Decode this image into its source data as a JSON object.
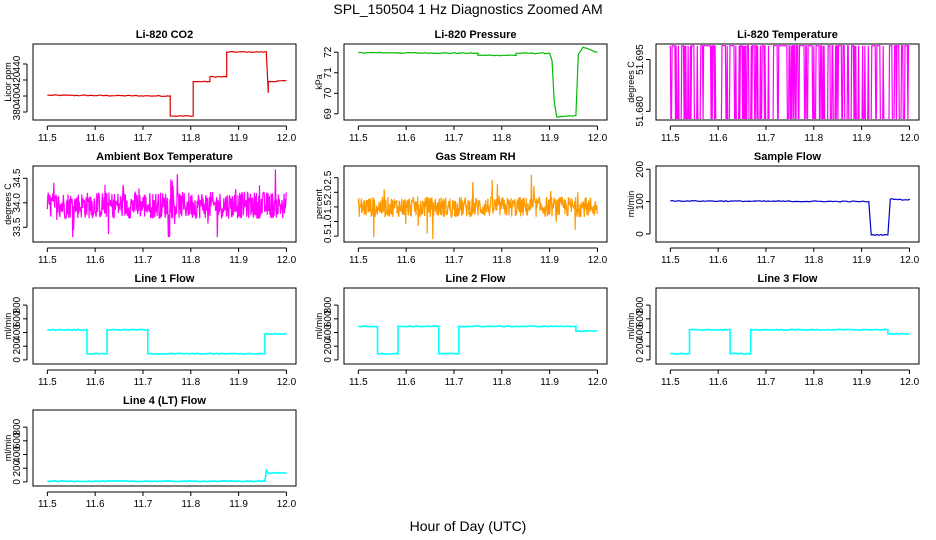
{
  "figure": {
    "title": "SPL_150504  1 Hz Diagnostics Zoomed AM",
    "xlabel": "Hour of Day (UTC)"
  },
  "chart_data": [
    {
      "type": "line",
      "title": "Li-820 CO2",
      "ylabel": "Licor ppm",
      "color": "#dd0000",
      "xlim": [
        11.47,
        12.02
      ],
      "ylim": [
        370,
        465
      ],
      "yticks": [
        "380",
        "400",
        "420",
        "440"
      ],
      "xticks": [
        "11.5",
        "11.6",
        "11.7",
        "11.8",
        "11.9",
        "12.0"
      ],
      "series": [
        {
          "x": [
            11.5,
            11.757,
            11.757,
            11.805,
            11.805,
            11.84,
            11.84,
            11.875,
            11.875,
            11.958,
            11.958,
            11.962,
            11.962,
            12.0
          ],
          "y": [
            401,
            400,
            375,
            375,
            418,
            418,
            424,
            424,
            455,
            455,
            452,
            404,
            418,
            419
          ]
        }
      ]
    },
    {
      "type": "line",
      "title": "Li-820 Pressure",
      "ylabel": "kPa",
      "color": "#00bb00",
      "xlim": [
        11.47,
        12.02
      ],
      "ylim": [
        68.7,
        72.4
      ],
      "yticks": [
        "69",
        "70",
        "71",
        "72"
      ],
      "xticks": [
        "11.5",
        "11.6",
        "11.7",
        "11.8",
        "11.9",
        "12.0"
      ],
      "series": [
        {
          "x": [
            11.5,
            11.75,
            11.75,
            11.83,
            11.83,
            11.9,
            11.905,
            11.91,
            11.915,
            11.955,
            11.96,
            11.97,
            12.0
          ],
          "y": [
            71.98,
            71.95,
            71.85,
            71.85,
            71.95,
            71.95,
            71.6,
            69.5,
            68.85,
            68.9,
            71.9,
            72.25,
            71.98
          ]
        }
      ]
    },
    {
      "type": "line",
      "title": "Li-820 Temperature",
      "ylabel": "degrees C",
      "color": "#ff00ff",
      "xlim": [
        11.47,
        12.02
      ],
      "ylim": [
        51.6775,
        51.6995
      ],
      "yticks": [
        "51.680",
        "51.695"
      ],
      "xticks": [
        "11.5",
        "11.6",
        "11.7",
        "11.8",
        "11.9",
        "12.0"
      ],
      "series": [
        {
          "x": [
            11.5,
            12.0
          ],
          "y": [
            51.6775,
            51.699
          ]
        }
      ]
    },
    {
      "type": "line",
      "title": "Ambient Box Temperature",
      "ylabel": "degrees C",
      "color": "#ff00ff",
      "xlim": [
        11.47,
        12.02
      ],
      "ylim": [
        33.2,
        34.75
      ],
      "yticks": [
        "33.5",
        "34.0",
        "34.5"
      ],
      "xticks": [
        "11.5",
        "11.6",
        "11.7",
        "11.8",
        "11.9",
        "12.0"
      ],
      "series": [
        {
          "x": [
            11.5,
            12.0
          ],
          "y": [
            33.3,
            34.7
          ]
        }
      ]
    },
    {
      "type": "line",
      "title": "Gas Stream RH",
      "ylabel": "percent",
      "color": "#ff9900",
      "xlim": [
        11.47,
        12.02
      ],
      "ylim": [
        0.3,
        2.9
      ],
      "yticks": [
        "0.5",
        "1.0",
        "1.5",
        "2.0",
        "2.5"
      ],
      "xticks": [
        "11.5",
        "11.6",
        "11.7",
        "11.8",
        "11.9",
        "12.0"
      ],
      "series": [
        {
          "x": [
            11.5,
            12.0
          ],
          "y": [
            0.4,
            2.8
          ]
        }
      ]
    },
    {
      "type": "line",
      "title": "Sample Flow",
      "ylabel": "ml/min",
      "color": "#0000cc",
      "xlim": [
        11.47,
        12.02
      ],
      "ylim": [
        -25,
        210
      ],
      "yticks": [
        "0",
        "100",
        "200"
      ],
      "xticks": [
        "11.5",
        "11.6",
        "11.7",
        "11.8",
        "11.9",
        "12.0"
      ],
      "series": [
        {
          "x": [
            11.5,
            11.915,
            11.92,
            11.955,
            11.96,
            12.0
          ],
          "y": [
            102,
            100,
            -3,
            -3,
            108,
            105
          ]
        }
      ]
    },
    {
      "type": "line",
      "title": "Line 1 Flow",
      "ylabel": "ml/min",
      "color": "#00ffff",
      "xlim": [
        11.47,
        12.02
      ],
      "ylim": [
        -60,
        1050
      ],
      "yticks": [
        "0",
        "200",
        "400",
        "600",
        "800"
      ],
      "xticks": [
        "11.5",
        "11.6",
        "11.7",
        "11.8",
        "11.9",
        "12.0"
      ],
      "series": [
        {
          "x": [
            11.5,
            11.583,
            11.583,
            11.625,
            11.625,
            11.71,
            11.71,
            11.955,
            11.955,
            12.0
          ],
          "y": [
            440,
            440,
            90,
            90,
            440,
            440,
            90,
            90,
            380,
            380
          ]
        }
      ]
    },
    {
      "type": "line",
      "title": "Line 2 Flow",
      "ylabel": "ml/min",
      "color": "#00ffff",
      "xlim": [
        11.47,
        12.02
      ],
      "ylim": [
        -60,
        1050
      ],
      "yticks": [
        "0",
        "200",
        "400",
        "600",
        "800"
      ],
      "xticks": [
        "11.5",
        "11.6",
        "11.7",
        "11.8",
        "11.9",
        "12.0"
      ],
      "series": [
        {
          "x": [
            11.5,
            11.54,
            11.54,
            11.583,
            11.583,
            11.668,
            11.668,
            11.71,
            11.71,
            11.955,
            11.955,
            12.0
          ],
          "y": [
            490,
            490,
            90,
            90,
            490,
            490,
            90,
            90,
            490,
            490,
            420,
            420
          ]
        }
      ]
    },
    {
      "type": "line",
      "title": "Line 3 Flow",
      "ylabel": "ml/min",
      "color": "#00ffff",
      "xlim": [
        11.47,
        12.02
      ],
      "ylim": [
        -60,
        1050
      ],
      "yticks": [
        "0",
        "200",
        "400",
        "600",
        "800"
      ],
      "xticks": [
        "11.5",
        "11.6",
        "11.7",
        "11.8",
        "11.9",
        "12.0"
      ],
      "series": [
        {
          "x": [
            11.5,
            11.54,
            11.54,
            11.625,
            11.625,
            11.668,
            11.668,
            11.955,
            11.955,
            12.0
          ],
          "y": [
            90,
            90,
            440,
            440,
            90,
            90,
            440,
            440,
            380,
            380
          ]
        }
      ]
    },
    {
      "type": "line",
      "title": "Line 4 (LT) Flow",
      "ylabel": "ml/min",
      "color": "#00ffff",
      "xlim": [
        11.47,
        12.02
      ],
      "ylim": [
        -60,
        1050
      ],
      "yticks": [
        "0",
        "200",
        "400",
        "600",
        "800"
      ],
      "xticks": [
        "11.5",
        "11.6",
        "11.7",
        "11.8",
        "11.9",
        "12.0"
      ],
      "series": [
        {
          "x": [
            11.5,
            11.955,
            11.958,
            11.962,
            12.0
          ],
          "y": [
            10,
            10,
            170,
            130,
            130
          ]
        }
      ]
    }
  ]
}
